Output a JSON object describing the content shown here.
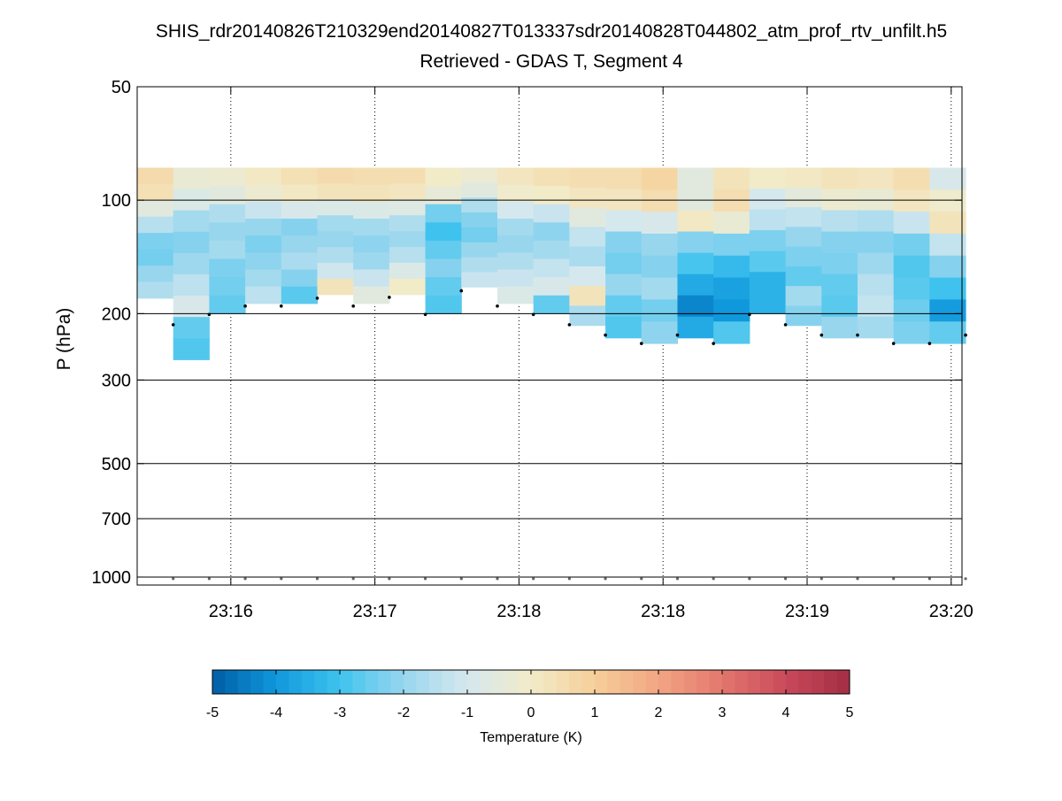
{
  "chart_data": {
    "type": "heatmap",
    "title": "SHIS_rdr20140826T210329end20140827T013337sdr20140828T044802_atm_prof_rtv_unfilt.h5",
    "subtitle": "Retrieved - GDAS T, Segment 4",
    "ylabel": "P (hPa)",
    "y_scale": "log",
    "y_reversed": true,
    "ylim": [
      50,
      1050
    ],
    "y_ticks": [
      50,
      100,
      200,
      300,
      500,
      700,
      1000
    ],
    "y_tick_labels": [
      "50",
      "100",
      "200",
      "300",
      "500",
      "700",
      "1000"
    ],
    "xlim": [
      0,
      22.9
    ],
    "x_ticks": [
      2.6,
      6.6,
      10.6,
      14.6,
      18.6,
      22.6
    ],
    "x_tick_labels": [
      "23:16",
      "23:17",
      "23:18",
      "23:18",
      "23:19",
      "23:20"
    ],
    "grid": true,
    "columns": [
      {
        "x": 0,
        "top": 82,
        "bottom": 182,
        "values": [
          0.6,
          0.4,
          -0.6,
          -1.5,
          -2.3,
          -2.4,
          -2.0,
          -1.6
        ]
      },
      {
        "x": 1,
        "top": 82,
        "bottom": 265,
        "values": [
          -0.3,
          -0.8,
          -1.8,
          -2.2,
          -1.9,
          -1.4,
          -0.9,
          -2.6,
          -2.8
        ]
      },
      {
        "x": 2,
        "top": 82,
        "bottom": 200,
        "values": [
          -0.2,
          -0.6,
          -1.6,
          -2.0,
          -1.8,
          -2.3,
          -2.4,
          -2.6
        ]
      },
      {
        "x": 3,
        "top": 82,
        "bottom": 188,
        "values": [
          0.1,
          -0.2,
          -1.2,
          -2.0,
          -2.3,
          -2.1,
          -1.8,
          -1.4
        ]
      },
      {
        "x": 4,
        "top": 82,
        "bottom": 188,
        "values": [
          0.4,
          0.1,
          -0.9,
          -2.2,
          -2.0,
          -1.7,
          -2.2,
          -2.7
        ]
      },
      {
        "x": 5,
        "top": 82,
        "bottom": 178,
        "values": [
          0.6,
          0.3,
          -0.8,
          -1.8,
          -2.0,
          -1.6,
          -1.1,
          0.3
        ]
      },
      {
        "x": 6,
        "top": 82,
        "bottom": 188,
        "values": [
          0.5,
          0.3,
          -0.8,
          -1.8,
          -2.1,
          -1.9,
          -1.2,
          -0.6
        ]
      },
      {
        "x": 7,
        "top": 82,
        "bottom": 178,
        "values": [
          0.5,
          0.2,
          -0.7,
          -1.6,
          -1.9,
          -1.5,
          -0.8,
          0.0
        ]
      },
      {
        "x": 8,
        "top": 82,
        "bottom": 200,
        "values": [
          0.0,
          -0.4,
          -2.4,
          -3.0,
          -2.6,
          -2.2,
          -2.6,
          -2.8
        ]
      },
      {
        "x": 9,
        "top": 82,
        "bottom": 170,
        "values": [
          -0.2,
          -0.6,
          -1.6,
          -2.2,
          -2.4,
          -2.0,
          -1.6,
          -1.2
        ]
      },
      {
        "x": 10,
        "top": 82,
        "bottom": 188,
        "values": [
          0.2,
          -0.1,
          -1.0,
          -1.8,
          -2.0,
          -1.6,
          -1.2,
          -0.8
        ]
      },
      {
        "x": 11,
        "top": 82,
        "bottom": 200,
        "values": [
          0.4,
          0.0,
          -1.2,
          -2.1,
          -1.8,
          -1.3,
          -0.9,
          -2.6
        ]
      },
      {
        "x": 12,
        "top": 82,
        "bottom": 215,
        "values": [
          0.5,
          0.2,
          -0.6,
          -1.3,
          -1.7,
          -1.0,
          0.3,
          -1.7
        ]
      },
      {
        "x": 13,
        "top": 82,
        "bottom": 232,
        "values": [
          0.5,
          0.2,
          -1.0,
          -2.2,
          -2.4,
          -2.0,
          -2.6,
          -2.8
        ]
      },
      {
        "x": 14,
        "top": 82,
        "bottom": 240,
        "values": [
          0.8,
          0.5,
          -0.9,
          -2.0,
          -2.2,
          -1.8,
          -2.4,
          -2.1
        ]
      },
      {
        "x": 15,
        "top": 82,
        "bottom": 232,
        "values": [
          -0.6,
          -0.6,
          0.1,
          -2.2,
          -2.9,
          -3.6,
          -4.3,
          -3.6
        ]
      },
      {
        "x": 16,
        "top": 82,
        "bottom": 240,
        "values": [
          0.3,
          0.5,
          -0.3,
          -2.3,
          -3.2,
          -3.8,
          -4.0,
          -2.8
        ]
      },
      {
        "x": 17,
        "top": 82,
        "bottom": 200,
        "values": [
          0.0,
          -1.0,
          -1.4,
          -2.3,
          -2.7,
          -3.4,
          -3.4
        ]
      },
      {
        "x": 18,
        "top": 82,
        "bottom": 215,
        "values": [
          0.1,
          -0.5,
          -1.3,
          -2.0,
          -2.3,
          -2.6,
          -1.8,
          -2.2
        ]
      },
      {
        "x": 19,
        "top": 82,
        "bottom": 232,
        "values": [
          0.3,
          -0.2,
          -1.5,
          -2.2,
          -2.3,
          -2.6,
          -2.7,
          -2.0
        ]
      },
      {
        "x": 20,
        "top": 82,
        "bottom": 232,
        "values": [
          0.2,
          -0.3,
          -1.6,
          -2.2,
          -1.9,
          -1.5,
          -1.3,
          -1.8
        ]
      },
      {
        "x": 21,
        "top": 82,
        "bottom": 240,
        "values": [
          0.5,
          0.2,
          -1.2,
          -2.4,
          -2.8,
          -2.7,
          -2.5,
          -2.3
        ]
      },
      {
        "x": 22,
        "top": 82,
        "bottom": 240,
        "values": [
          -0.9,
          -0.1,
          0.3,
          -1.3,
          -2.2,
          -3.0,
          -3.9,
          -2.6
        ]
      }
    ],
    "markers_upper": [
      {
        "x": 1,
        "p": 214
      },
      {
        "x": 2,
        "p": 201
      },
      {
        "x": 3,
        "p": 191
      },
      {
        "x": 4,
        "p": 191
      },
      {
        "x": 5,
        "p": 182
      },
      {
        "x": 6,
        "p": 191
      },
      {
        "x": 7,
        "p": 181
      },
      {
        "x": 8,
        "p": 201
      },
      {
        "x": 9,
        "p": 174
      },
      {
        "x": 10,
        "p": 191
      },
      {
        "x": 11,
        "p": 201
      },
      {
        "x": 12,
        "p": 214
      },
      {
        "x": 13,
        "p": 228
      },
      {
        "x": 14,
        "p": 240
      },
      {
        "x": 15,
        "p": 228
      },
      {
        "x": 16,
        "p": 240
      },
      {
        "x": 17,
        "p": 201
      },
      {
        "x": 18,
        "p": 214
      },
      {
        "x": 19,
        "p": 228
      },
      {
        "x": 20,
        "p": 228
      },
      {
        "x": 21,
        "p": 240
      },
      {
        "x": 22,
        "p": 240
      },
      {
        "x": 23,
        "p": 228
      }
    ],
    "markers_surface_p": 1010,
    "colorbar": {
      "label": "Temperature (K)",
      "range": [
        -5,
        5
      ],
      "ticks": [
        "-5",
        "-4",
        "-3",
        "-2",
        "-1",
        "0",
        "1",
        "2",
        "3",
        "4",
        "5"
      ],
      "colors": [
        "#005da4",
        "#1098dd",
        "#3fc3ee",
        "#98d6ee",
        "#d5e8ee",
        "#f2ebc8",
        "#f6cf99",
        "#f2a584",
        "#e3776e",
        "#c9495a",
        "#a22e44"
      ]
    }
  }
}
